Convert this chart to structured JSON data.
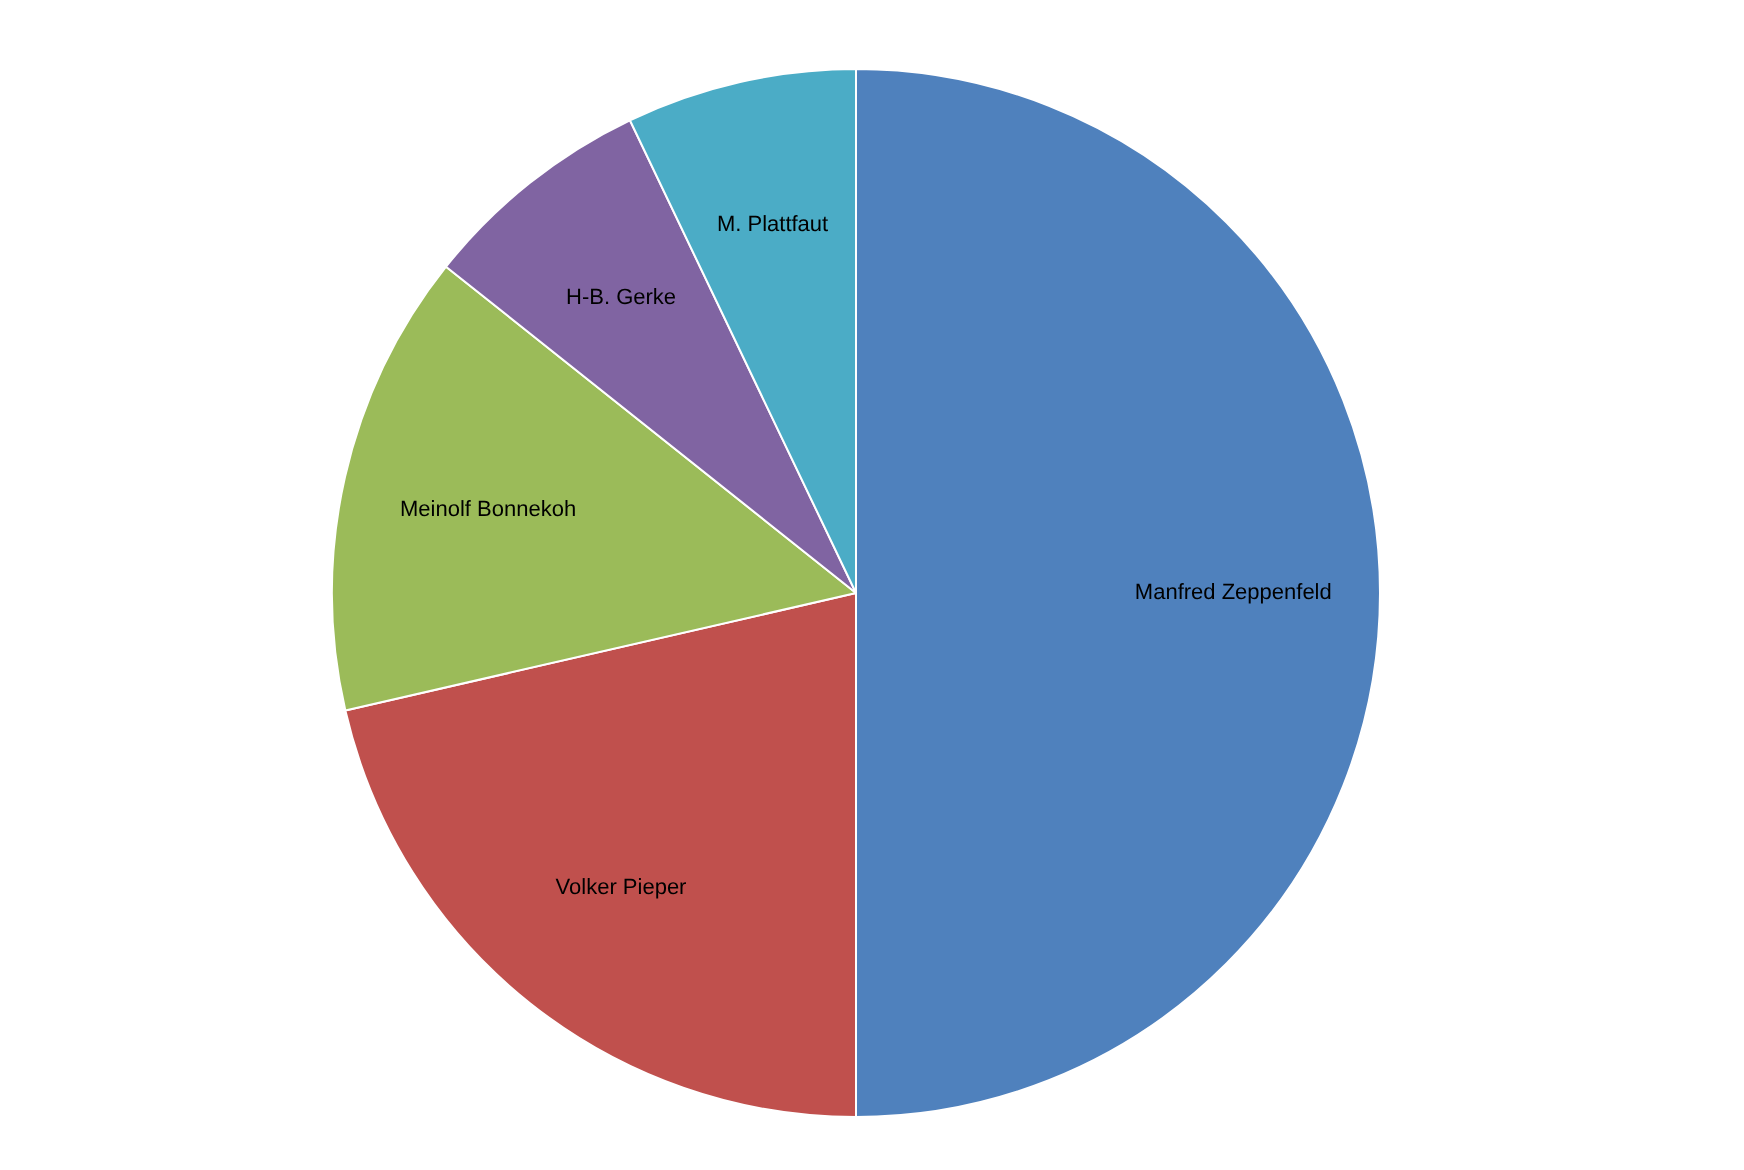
{
  "chart_data": {
    "type": "pie",
    "categories": [
      "Manfred Zeppenfeld",
      "Volker Pieper",
      "Meinolf Bonnekoh",
      "H-B. Gerke",
      "M. Plattfaut"
    ],
    "values": [
      50,
      21.4,
      14.3,
      7.2,
      7.1
    ],
    "colors": [
      "#4f81bd",
      "#c0504d",
      "#9bbb59",
      "#8064a2",
      "#4bacc6"
    ],
    "legend": false
  }
}
